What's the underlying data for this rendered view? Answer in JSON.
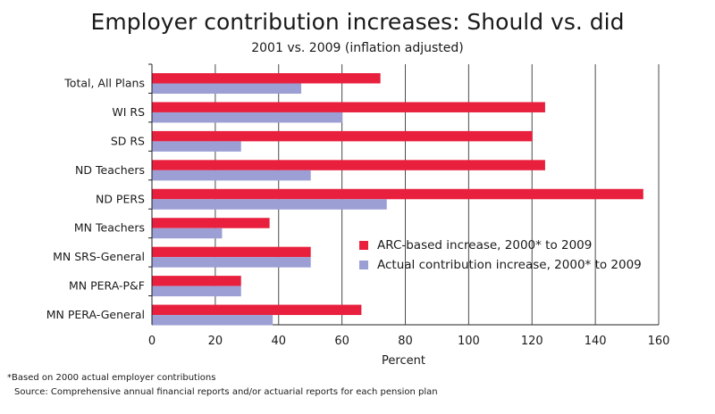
{
  "chart_data": {
    "type": "bar",
    "orientation": "horizontal",
    "title": "Employer contribution increases: Should vs. did",
    "subtitle": "2001 vs. 2009 (inflation adjusted)",
    "xlabel": "Percent",
    "xlim": [
      0,
      160
    ],
    "xticks": [
      "0",
      "20",
      "40",
      "60",
      "80",
      "100",
      "120",
      "140",
      "160"
    ],
    "categories": [
      "Total, All Plans",
      "WI RS",
      "SD RS",
      "ND Teachers",
      "ND PERS",
      "MN Teachers",
      "MN SRS-General",
      "MN PERA-P&F",
      "MN PERA-General"
    ],
    "series": [
      {
        "name": "ARC-based increase, 2000* to 2009",
        "color": "#e8203e",
        "values": [
          72,
          124,
          120,
          124,
          155,
          37,
          50,
          28,
          66
        ]
      },
      {
        "name": "Actual contribution increase, 2000* to 2009",
        "color": "#9b9fd4",
        "values": [
          47,
          60,
          28,
          50,
          74,
          22,
          50,
          28,
          38
        ]
      }
    ],
    "legend_position": "center-right",
    "grid": "vertical"
  },
  "footnote": "*Based on 2000 actual employer contributions",
  "source": "Source: Comprehensive annual financial reports and/or actuarial reports for each pension plan"
}
